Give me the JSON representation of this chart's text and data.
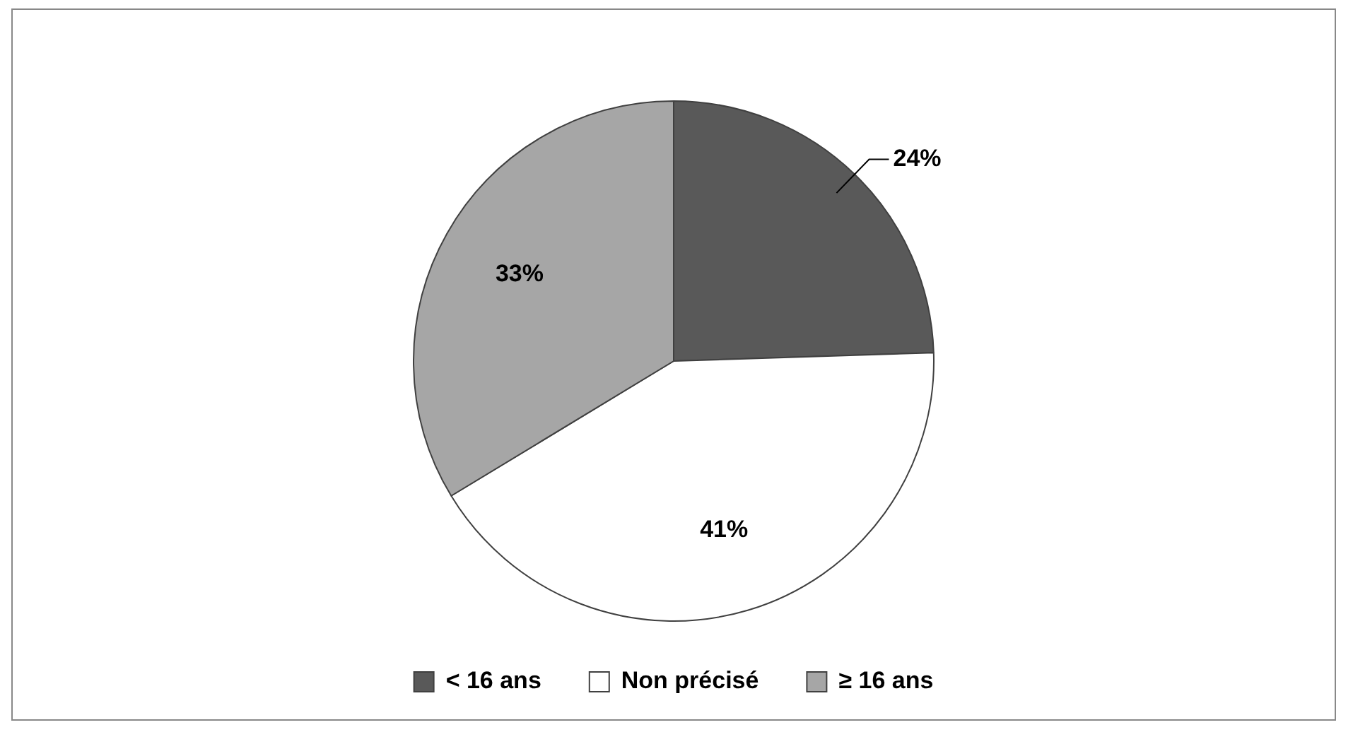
{
  "chart_data": {
    "type": "pie",
    "categories": [
      "< 16 ans",
      "Non précisé",
      "≥ 16 ans"
    ],
    "values": [
      24,
      41,
      33
    ],
    "colors": [
      "#595959",
      "#ffffff",
      "#a6a6a6"
    ],
    "value_labels": [
      "24%",
      "41%",
      "33%"
    ],
    "legend": "bottom"
  }
}
